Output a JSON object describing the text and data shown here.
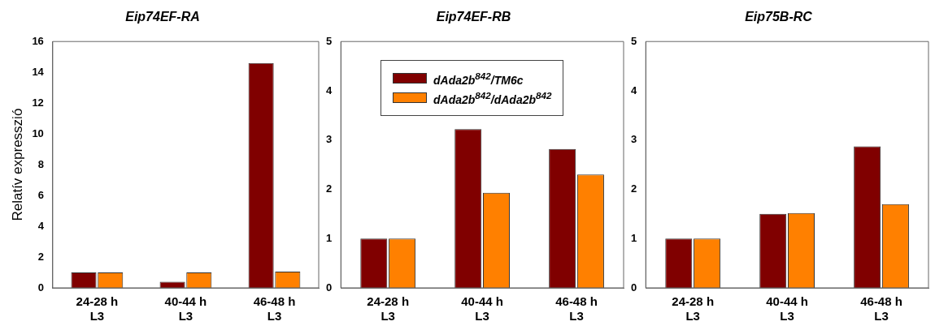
{
  "chart_data": [
    {
      "type": "bar",
      "title": "Eip74EF-RA",
      "ylabel": "Relatív expresszió",
      "categories": [
        "24-28 h\nL3",
        "40-44 h\nL3",
        "46-48 h\nL3"
      ],
      "ylim": [
        0,
        16
      ],
      "yticks": [
        0,
        2,
        4,
        6,
        8,
        10,
        12,
        14,
        16
      ],
      "grid": false,
      "legend": false,
      "series": [
        {
          "color": "#800000",
          "values": [
            1.0,
            0.4,
            14.6
          ]
        },
        {
          "color": "#ff8000",
          "values": [
            1.0,
            1.0,
            1.05
          ]
        }
      ]
    },
    {
      "type": "bar",
      "title": "Eip74EF-RB",
      "categories": [
        "24-28 h\nL3",
        "40-44 h\nL3",
        "46-48 h\nL3"
      ],
      "ylim": [
        0,
        5
      ],
      "yticks": [
        0,
        1,
        2,
        3,
        4,
        5
      ],
      "grid": false,
      "legend": "top left",
      "series": [
        {
          "name": "dAda2b$^{842}$/TM6c",
          "color": "#800000",
          "values": [
            1.0,
            3.22,
            2.82
          ]
        },
        {
          "name": "dAda2b$^{842}$/dAda2b$^{842}$",
          "color": "#ff8000",
          "values": [
            1.0,
            1.93,
            2.3
          ]
        }
      ]
    },
    {
      "type": "bar",
      "title": "Eip75B-RC",
      "categories": [
        "24-28 h\nL3",
        "40-44 h\nL3",
        "46-48 h\nL3"
      ],
      "ylim": [
        0,
        5
      ],
      "yticks": [
        0,
        1,
        2,
        3,
        4,
        5
      ],
      "grid": false,
      "legend": false,
      "series": [
        {
          "color": "#800000",
          "values": [
            1.0,
            1.5,
            2.87
          ]
        },
        {
          "color": "#ff8000",
          "values": [
            1.0,
            1.52,
            1.7
          ]
        }
      ]
    }
  ]
}
